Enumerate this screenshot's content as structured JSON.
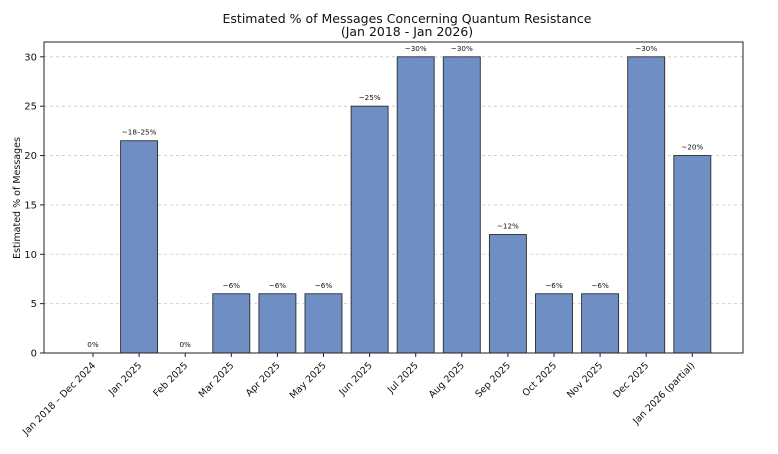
{
  "chart_data": {
    "type": "bar",
    "title": "Estimated % of Messages Concerning Quantum Resistance",
    "subtitle": "(Jan 2018 - Jan 2026)",
    "xlabel": "",
    "ylabel": "Estimated % of Messages",
    "ylim": [
      0,
      31.5
    ],
    "yticks": [
      0,
      5,
      10,
      15,
      20,
      25,
      30
    ],
    "grid": "y",
    "bar_color": "#6f8fc4",
    "bar_edge_color": "#2b2b2b",
    "categories": [
      "Jan 2018 – Dec 2024",
      "Jan 2025",
      "Feb 2025",
      "Mar 2025",
      "Apr 2025",
      "May 2025",
      "Jun 2025",
      "Jul 2025",
      "Aug 2025",
      "Sep 2025",
      "Oct 2025",
      "Nov 2025",
      "Dec 2025",
      "Jan 2026 (partial)"
    ],
    "values": [
      0,
      21.5,
      0,
      6,
      6,
      6,
      25,
      30,
      30,
      12,
      6,
      6,
      30,
      20
    ],
    "data_labels": [
      "0%",
      "~18–25%",
      "0%",
      "~6%",
      "~6%",
      "~6%",
      "~25%",
      "~30%",
      "~30%",
      "~12%",
      "~6%",
      "~6%",
      "~30%",
      "~20%"
    ]
  }
}
